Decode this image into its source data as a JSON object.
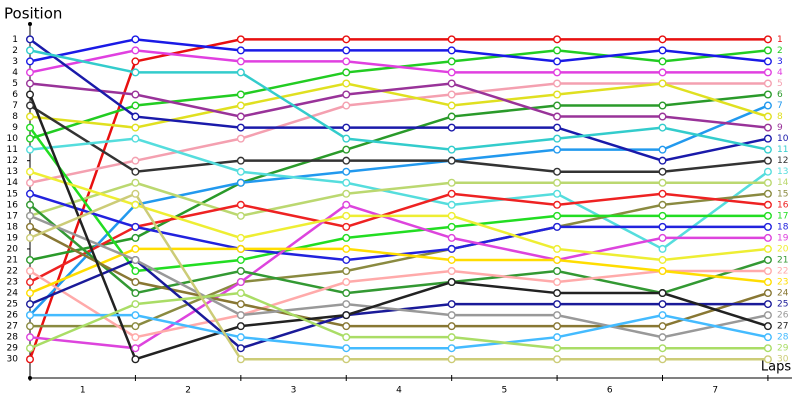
{
  "chart_data": {
    "type": "line",
    "title": "Position",
    "x_label": "Laps",
    "x": [
      0,
      1,
      2,
      3,
      4,
      5,
      6,
      7
    ],
    "xlim": [
      0,
      7.2
    ],
    "xticks": [
      {
        "value": 0.5,
        "label": "1"
      },
      {
        "value": 1.5,
        "label": "2"
      },
      {
        "value": 2.5,
        "label": "3"
      },
      {
        "value": 3.5,
        "label": "4"
      },
      {
        "value": 4.5,
        "label": "5"
      },
      {
        "value": 5.5,
        "label": "6"
      },
      {
        "value": 6.5,
        "label": "7"
      }
    ],
    "ylim": [
      31.7,
      -0.3
    ],
    "yticks": [
      1,
      2,
      3,
      4,
      5,
      6,
      7,
      8,
      9,
      10,
      11,
      12,
      13,
      14,
      15,
      16,
      17,
      18,
      19,
      20,
      21,
      22,
      23,
      24,
      25,
      26,
      27,
      28,
      29,
      30
    ],
    "series": [
      {
        "color": "#e81010",
        "values": [
          30,
          3,
          1,
          1,
          1,
          1,
          1,
          1
        ]
      },
      {
        "color": "#22cc22",
        "values": [
          10,
          7,
          6,
          4,
          3,
          2,
          3,
          2
        ]
      },
      {
        "color": "#1a1ae6",
        "values": [
          3,
          1,
          2,
          2,
          2,
          3,
          2,
          3
        ]
      },
      {
        "color": "#e040e0",
        "values": [
          4,
          2,
          3,
          3,
          4,
          4,
          4,
          4
        ]
      },
      {
        "color": "#f4a0b0",
        "values": [
          14,
          12,
          10,
          7,
          6,
          5,
          5,
          5
        ]
      },
      {
        "color": "#2a9a2a",
        "values": [
          21,
          19,
          14,
          11,
          8,
          7,
          7,
          6
        ]
      },
      {
        "color": "#2299ee",
        "values": [
          26,
          16,
          14,
          13,
          12,
          11,
          11,
          7
        ]
      },
      {
        "color": "#e0e020",
        "values": [
          8,
          9,
          7,
          5,
          7,
          6,
          5,
          8
        ]
      },
      {
        "color": "#993399",
        "values": [
          5,
          6,
          8,
          6,
          5,
          8,
          8,
          9
        ]
      },
      {
        "color": "#1a1aaa",
        "values": [
          1,
          8,
          9,
          9,
          9,
          9,
          12,
          10
        ]
      },
      {
        "color": "#33cccc",
        "values": [
          2,
          4,
          4,
          10,
          11,
          10,
          9,
          11
        ]
      },
      {
        "color": "#333333",
        "values": [
          7,
          13,
          12,
          12,
          12,
          13,
          13,
          12
        ]
      },
      {
        "color": "#55dddd",
        "values": [
          11,
          10,
          13,
          14,
          16,
          15,
          20,
          13
        ]
      },
      {
        "color": "#bbd870",
        "values": [
          17,
          14,
          17,
          15,
          14,
          14,
          14,
          14
        ]
      },
      {
        "color": "#8a8a40",
        "values": [
          27,
          27,
          23,
          22,
          20,
          18,
          16,
          15
        ]
      },
      {
        "color": "#ee2222",
        "values": [
          23,
          18,
          16,
          18,
          15,
          16,
          15,
          16
        ]
      },
      {
        "color": "#22dd22",
        "values": [
          9,
          22,
          21,
          19,
          18,
          17,
          17,
          17
        ]
      },
      {
        "color": "#2222dd",
        "values": [
          15,
          18,
          20,
          21,
          20,
          18,
          18,
          18
        ]
      },
      {
        "color": "#dd44dd",
        "values": [
          28,
          29,
          23,
          16,
          19,
          21,
          19,
          19
        ]
      },
      {
        "color": "#eeee33",
        "values": [
          13,
          16,
          19,
          17,
          17,
          20,
          21,
          20
        ]
      },
      {
        "color": "#339933",
        "values": [
          16,
          24,
          22,
          24,
          23,
          22,
          24,
          21
        ]
      },
      {
        "color": "#ffaaaa",
        "values": [
          22,
          28,
          26,
          23,
          22,
          23,
          22,
          22
        ]
      },
      {
        "color": "#ffdd00",
        "values": [
          24,
          20,
          20,
          20,
          21,
          21,
          22,
          23
        ]
      },
      {
        "color": "#887733",
        "values": [
          18,
          23,
          25,
          27,
          27,
          27,
          27,
          24
        ]
      },
      {
        "color": "#1a1a99",
        "values": [
          25,
          21,
          29,
          26,
          25,
          25,
          25,
          25
        ]
      },
      {
        "color": "#999999",
        "values": [
          17,
          21,
          26,
          25,
          26,
          26,
          28,
          26
        ]
      },
      {
        "color": "#222222",
        "values": [
          6,
          30,
          27,
          26,
          23,
          24,
          24,
          27
        ]
      },
      {
        "color": "#44bbff",
        "values": [
          26,
          26,
          28,
          29,
          29,
          28,
          26,
          28
        ]
      },
      {
        "color": "#aadd66",
        "values": [
          29,
          25,
          24,
          28,
          28,
          29,
          29,
          29
        ]
      },
      {
        "color": "#cccc77",
        "values": [
          19,
          15,
          30,
          30,
          30,
          30,
          30,
          30
        ]
      }
    ]
  }
}
